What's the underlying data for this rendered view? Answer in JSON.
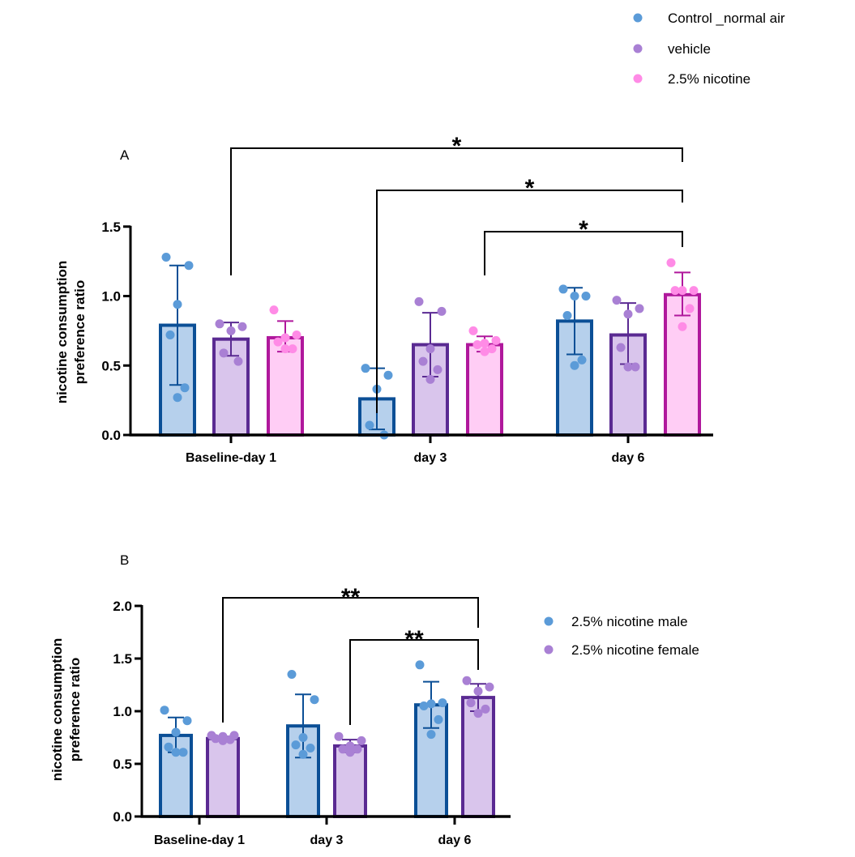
{
  "chart_data": [
    {
      "panel": "A",
      "type": "bar",
      "ylabel": [
        "nicotine consumption",
        "preference ratio"
      ],
      "ylim": [
        0,
        1.5
      ],
      "yticks": [
        "0.0",
        "0.5",
        "1.0",
        "1.5"
      ],
      "categories": [
        "Baseline-day 1",
        "day 3",
        "day 6"
      ],
      "legend_position": "top-right",
      "series": [
        {
          "name": "Control _normal air",
          "color": "#5b9bd8",
          "fill": "#b6d0ec",
          "stroke": "#0b4f96",
          "values": [
            0.79,
            0.26,
            0.82
          ],
          "error_low": [
            0.36,
            0.04,
            0.58
          ],
          "error_high": [
            1.22,
            0.48,
            1.06
          ],
          "points": [
            [
              1.28,
              1.22,
              0.94,
              0.72,
              0.34,
              0.27
            ],
            [
              0.48,
              0.43,
              0.33,
              0.07,
              0.0
            ],
            [
              1.05,
              1.0,
              1.0,
              0.86,
              0.54,
              0.5
            ]
          ]
        },
        {
          "name": "vehicle",
          "color": "#a980d4",
          "fill": "#d9c5ec",
          "stroke": "#5a2a92",
          "values": [
            0.69,
            0.65,
            0.72
          ],
          "error_low": [
            0.57,
            0.42,
            0.51
          ],
          "error_high": [
            0.81,
            0.88,
            0.95
          ],
          "points": [
            [
              0.8,
              0.78,
              0.75,
              0.59,
              0.53
            ],
            [
              0.96,
              0.89,
              0.62,
              0.53,
              0.47,
              0.4
            ],
            [
              0.97,
              0.91,
              0.87,
              0.63,
              0.49,
              0.49
            ]
          ]
        },
        {
          "name": "2.5% nicotine",
          "color": "#ff8be6",
          "fill": "#ffcdf5",
          "stroke": "#b0189c",
          "values": [
            0.7,
            0.65,
            1.01
          ],
          "error_low": [
            0.6,
            0.6,
            0.86
          ],
          "error_high": [
            0.82,
            0.71,
            1.17
          ],
          "points": [
            [
              0.9,
              0.72,
              0.7,
              0.67,
              0.62,
              0.62
            ],
            [
              0.75,
              0.68,
              0.66,
              0.65,
              0.62,
              0.6
            ],
            [
              1.24,
              1.04,
              1.04,
              1.04,
              0.91,
              0.78
            ]
          ]
        }
      ],
      "annotations": [
        {
          "from": [
            "Baseline-day 1",
            "vehicle"
          ],
          "to": [
            "day 6",
            "2.5% nicotine"
          ],
          "label": "*"
        },
        {
          "from": [
            "day 3",
            "Control _normal air"
          ],
          "to": [
            "day 6",
            "2.5% nicotine"
          ],
          "label": "*"
        },
        {
          "from": [
            "day 3",
            "2.5% nicotine"
          ],
          "to": [
            "day 6",
            "2.5% nicotine"
          ],
          "label": "*"
        }
      ]
    },
    {
      "panel": "B",
      "type": "bar",
      "ylabel": [
        "nicotine consumption",
        "preference ratio"
      ],
      "ylim": [
        0,
        2.0
      ],
      "yticks": [
        "0.0",
        "0.5",
        "1.0",
        "1.5",
        "2.0"
      ],
      "categories": [
        "Baseline-day 1",
        "day 3",
        "day 6"
      ],
      "legend_position": "right",
      "series": [
        {
          "name": "2.5% nicotine male",
          "color": "#5b9bd8",
          "fill": "#b6d0ec",
          "stroke": "#0b4f96",
          "values": [
            0.77,
            0.86,
            1.06
          ],
          "error_low": [
            0.61,
            0.56,
            0.84
          ],
          "error_high": [
            0.94,
            1.16,
            1.28
          ],
          "points": [
            [
              1.01,
              0.91,
              0.8,
              0.66,
              0.61,
              0.61
            ],
            [
              1.35,
              1.11,
              0.75,
              0.68,
              0.65,
              0.59
            ],
            [
              1.44,
              1.08,
              1.07,
              1.05,
              0.92,
              0.78
            ]
          ]
        },
        {
          "name": "2.5% nicotine female",
          "color": "#a980d4",
          "fill": "#d9c5ec",
          "stroke": "#5a2a92",
          "values": [
            0.74,
            0.67,
            1.13
          ],
          "error_low": [
            0.72,
            0.61,
            1.0
          ],
          "error_high": [
            0.76,
            0.73,
            1.26
          ],
          "points": [
            [
              0.77,
              0.77,
              0.76,
              0.74,
              0.73,
              0.72
            ],
            [
              0.76,
              0.72,
              0.67,
              0.64,
              0.64,
              0.61
            ],
            [
              1.29,
              1.23,
              1.19,
              1.08,
              1.02,
              0.98
            ]
          ]
        }
      ],
      "annotations": [
        {
          "from": [
            "Baseline-day 1",
            "2.5% nicotine female"
          ],
          "to": [
            "day 6",
            "2.5% nicotine female"
          ],
          "label": "**"
        },
        {
          "from": [
            "day 3",
            "2.5% nicotine female"
          ],
          "to": [
            "day 6",
            "2.5% nicotine female"
          ],
          "label": "**"
        }
      ]
    }
  ]
}
